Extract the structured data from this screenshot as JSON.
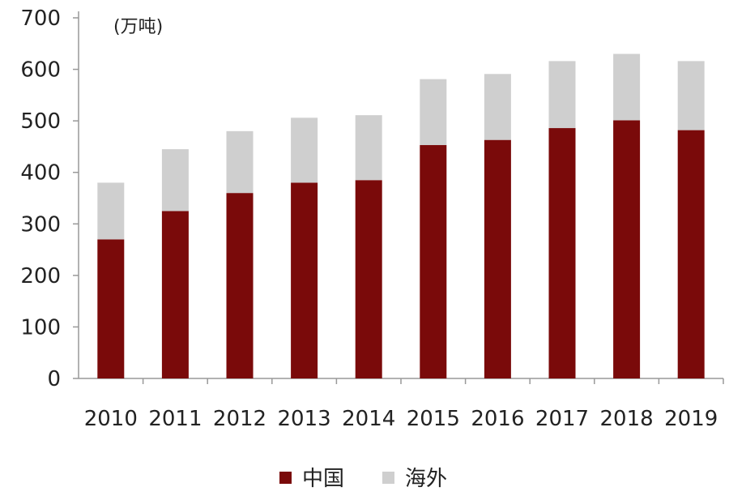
{
  "chart_data": {
    "type": "bar",
    "stacked": true,
    "unit_label": "(万吨)",
    "categories": [
      "2010",
      "2011",
      "2012",
      "2013",
      "2014",
      "2015",
      "2016",
      "2017",
      "2018",
      "2019"
    ],
    "series": [
      {
        "name": "中国",
        "color": "#7a0a0a",
        "values": [
          270,
          325,
          360,
          380,
          385,
          453,
          463,
          486,
          501,
          482
        ]
      },
      {
        "name": "海外",
        "color": "#cfcfcf",
        "values": [
          110,
          120,
          120,
          126,
          126,
          128,
          128,
          130,
          129,
          134
        ]
      }
    ],
    "ylim": [
      0,
      700
    ],
    "yticks": [
      "0",
      "100",
      "200",
      "300",
      "400",
      "500",
      "600",
      "700"
    ],
    "legend_position": "bottom",
    "grid": false
  }
}
